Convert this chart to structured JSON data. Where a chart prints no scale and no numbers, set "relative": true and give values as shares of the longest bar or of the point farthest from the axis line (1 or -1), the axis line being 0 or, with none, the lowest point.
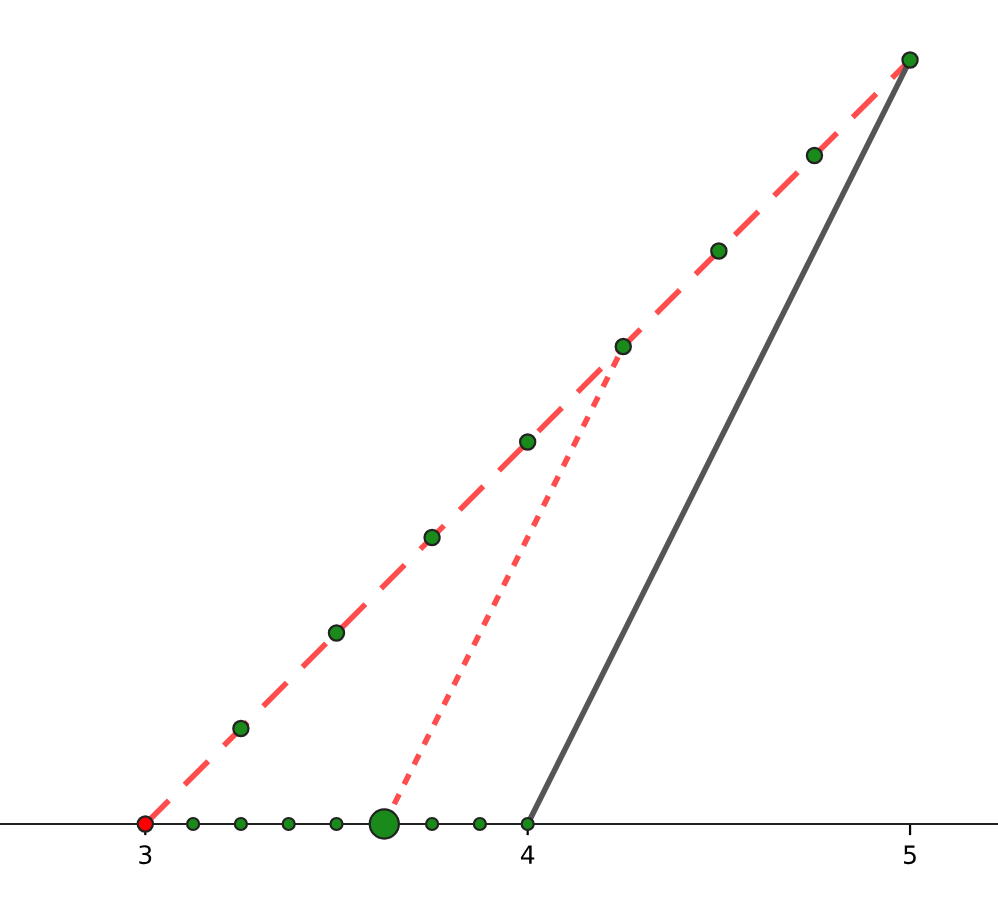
{
  "chart_data": {
    "type": "line",
    "relative": true,
    "xlim": [
      2.62,
      5.23
    ],
    "xticks": [
      3,
      4,
      5
    ],
    "grid": false,
    "legend": false,
    "series": [
      {
        "color": "#ff4d4d",
        "line_style": "dashed",
        "x": [
          3,
          5
        ],
        "values": [
          0,
          1
        ]
      },
      {
        "color": "#ff4d4d",
        "line_style": "dotted",
        "x": [
          3.625,
          4.25
        ],
        "values": [
          0,
          0.625
        ]
      },
      {
        "color": "#555555",
        "line_style": "solid",
        "x": [
          4,
          5
        ],
        "values": [
          0,
          1
        ]
      },
      {
        "type": "scatter",
        "color": "#1a8a1a",
        "marker": "circle",
        "x": [
          3.25,
          3.5,
          3.75,
          4,
          4.25,
          4.5,
          4.75,
          5
        ],
        "values": [
          0.125,
          0.25,
          0.375,
          0.5,
          0.625,
          0.75,
          0.875,
          1
        ]
      },
      {
        "type": "bubble",
        "color": "#1a8a1a",
        "marker": "circle",
        "x": [
          3.125,
          3.25,
          3.375,
          3.5,
          3.625,
          3.75,
          3.875,
          4
        ],
        "values": [
          0,
          0,
          0,
          0,
          0,
          0,
          0,
          0
        ],
        "sizes": [
          0.17,
          0.17,
          0.17,
          0.17,
          1,
          0.17,
          0.17,
          0.17
        ]
      },
      {
        "type": "scatter",
        "color": "#ff0000",
        "marker": "circle",
        "x": [
          3
        ],
        "values": [
          0
        ]
      }
    ]
  }
}
